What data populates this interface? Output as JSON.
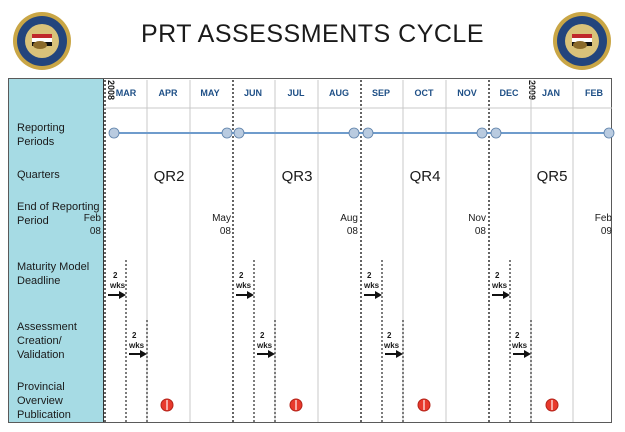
{
  "header": {
    "title": "PRT ASSESSMENTS CYCLE",
    "seal_left": "seal-emblem",
    "seal_right": "seal-emblem"
  },
  "timeline": {
    "months": [
      "MAR",
      "APR",
      "MAY",
      "JUN",
      "JUL",
      "AUG",
      "SEP",
      "OCT",
      "NOV",
      "DEC",
      "JAN",
      "FEB"
    ],
    "year_markers": [
      "2008",
      "2009"
    ]
  },
  "rows": {
    "reporting_periods": "Reporting Periods",
    "quarters": "Quarters",
    "end_of_reporting_period": "End of Reporting Period",
    "maturity_model_deadline": "Maturity Model Deadline",
    "assessment_creation": "Assessment Creation/ Validation",
    "provincial_overview": "Provincial Overview Publication"
  },
  "quarters": [
    "QR2",
    "QR3",
    "QR4",
    "QR5"
  ],
  "end_dates": [
    {
      "month": "Feb",
      "year": "08"
    },
    {
      "month": "May",
      "year": "08"
    },
    {
      "month": "Aug",
      "year": "08"
    },
    {
      "month": "Nov",
      "year": "08"
    },
    {
      "month": "Feb",
      "year": "09"
    }
  ],
  "duration_label": {
    "amount": "2",
    "unit": "wks"
  },
  "colors": {
    "sidebar": "#a6dbe4",
    "month_text": "#1e4f86",
    "timeline_line": "#6f9ccc",
    "publication_marker": "#e8392c"
  }
}
